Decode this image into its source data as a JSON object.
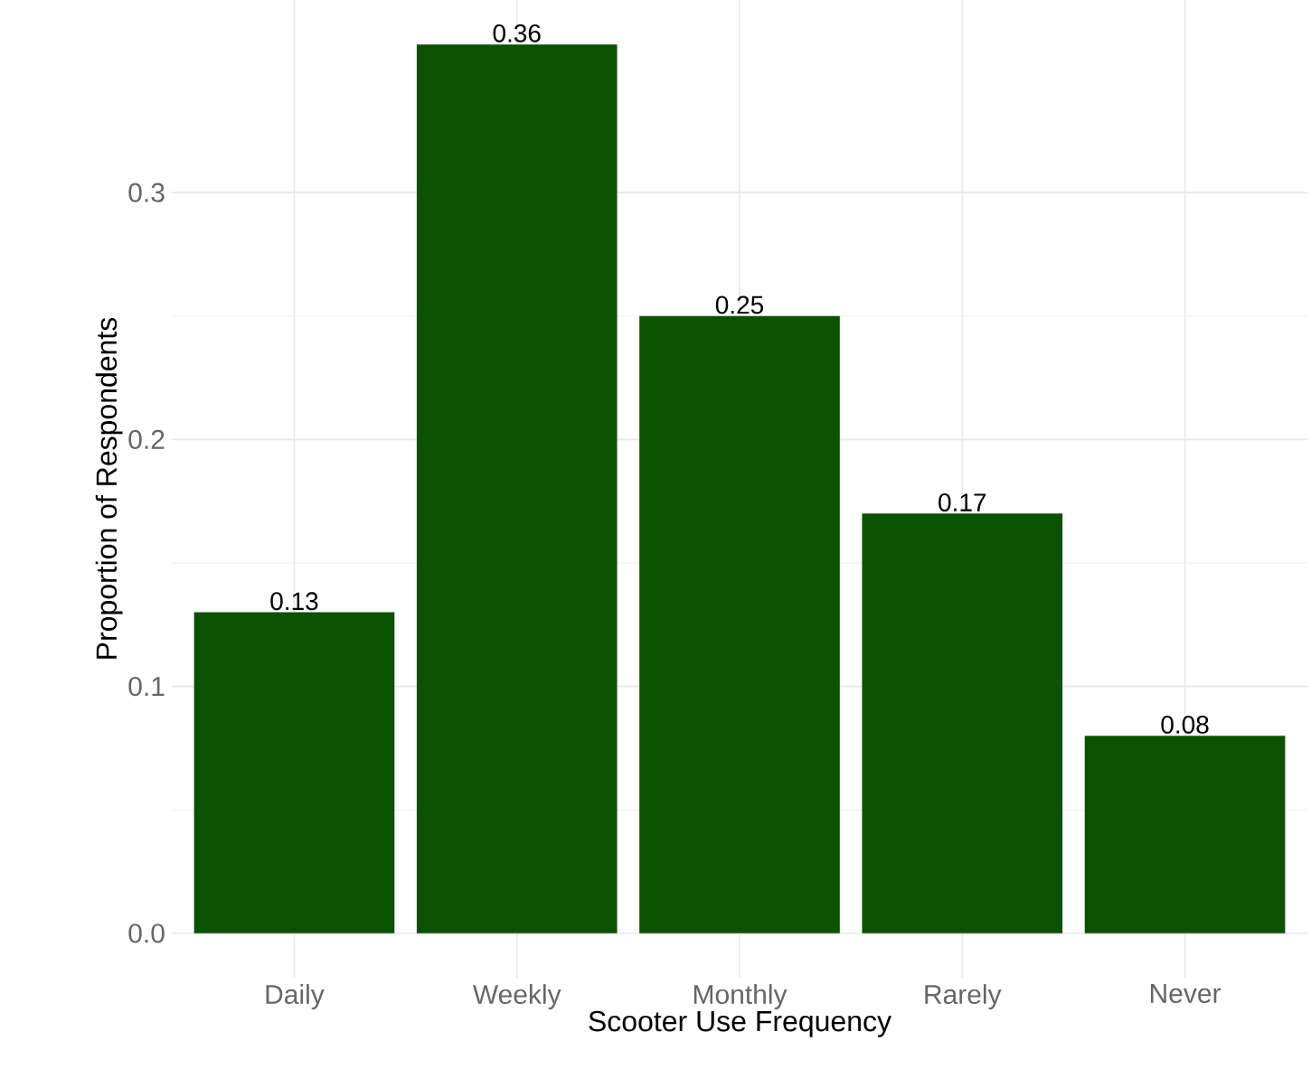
{
  "chart_data": {
    "type": "bar",
    "xlabel": "Scooter Use Frequency",
    "ylabel": "Proportion of Respondents",
    "categories": [
      "Daily",
      "Weekly",
      "Monthly",
      "Rarely",
      "Never"
    ],
    "values": [
      0.13,
      0.36,
      0.25,
      0.17,
      0.08
    ],
    "color": "#0b5200",
    "ylim": [
      -0.018,
      0.378
    ],
    "yticks": [
      {
        "value": 0,
        "label": "0.0"
      },
      0.1,
      0.2,
      0.3
    ],
    "grid": true,
    "data_labels": true
  }
}
